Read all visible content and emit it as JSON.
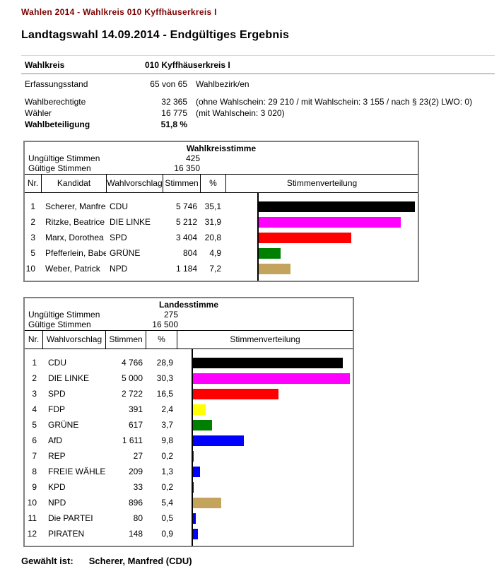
{
  "page": {
    "header": "Wahlen 2014 - Wahlkreis 010 Kyffhäuserkreis I",
    "title": "Landtagswahl 14.09.2014 - Endgültiges Ergebnis",
    "footer_label": "Gewählt ist:",
    "footer_value": "Scherer, Manfred (CDU)"
  },
  "colors": {
    "header_text": "#7B0000",
    "table_border": "#808080",
    "axis": "#000000"
  },
  "summary": {
    "wahlkreis_label": "Wahlkreis",
    "wahlkreis_value": "010  Kyffhäuserkreis I",
    "rows": [
      {
        "label": "Erfassungsstand",
        "value": "65 von 65",
        "note": "Wahlbezirk/en",
        "bold": false
      },
      {
        "label": "Wahlberechtigte",
        "value": "32 365",
        "note": "(ohne Wahlschein: 29 210 / mit Wahlschein: 3 155 / nach § 23(2) LWO: 0)",
        "bold": false
      },
      {
        "label": "Wähler",
        "value": "16 775",
        "note": "(mit Wahlschein: 3 020)",
        "bold": false
      },
      {
        "label": "Wahlbeteiligung",
        "value": "51,8 %",
        "note": "",
        "bold": true
      }
    ]
  },
  "tables": [
    {
      "title": "Wahlkreisstimme",
      "invalid_label": "Ungültige Stimmen",
      "invalid_value": "425",
      "valid_label": "Gültige Stimmen",
      "valid_value": "16 350",
      "columns": [
        "Nr.",
        "Kandidat",
        "Wahlvorschlag",
        "Stimmen",
        "%",
        "Stimmenverteilung"
      ],
      "rows": [
        {
          "nr": "1",
          "kandidat": "Scherer, Manfred",
          "partei": "CDU",
          "stimmen": "5 746",
          "pct": "35,1",
          "pct_num": 35.1,
          "color": "#000000"
        },
        {
          "nr": "2",
          "kandidat": "Ritzke, Beatrice",
          "partei": "DIE LINKE",
          "stimmen": "5 212",
          "pct": "31,9",
          "pct_num": 31.9,
          "color": "#FF00FF"
        },
        {
          "nr": "3",
          "kandidat": "Marx, Dorothea",
          "partei": "SPD",
          "stimmen": "3 404",
          "pct": "20,8",
          "pct_num": 20.8,
          "color": "#FF0000"
        },
        {
          "nr": "5",
          "kandidat": "Pfefferlein, Babett",
          "partei": "GRÜNE",
          "stimmen": "804",
          "pct": "4,9",
          "pct_num": 4.9,
          "color": "#008000"
        },
        {
          "nr": "10",
          "kandidat": "Weber, Patrick",
          "partei": "NPD",
          "stimmen": "1 184",
          "pct": "7,2",
          "pct_num": 7.2,
          "color": "#C4A45C"
        }
      ]
    },
    {
      "title": "Landesstimme",
      "invalid_label": "Ungültige Stimmen",
      "invalid_value": "275",
      "valid_label": "Gültige Stimmen",
      "valid_value": "16 500",
      "columns": [
        "Nr.",
        "Wahlvorschlag",
        "Stimmen",
        "%",
        "Stimmenverteilung"
      ],
      "rows": [
        {
          "nr": "1",
          "partei": "CDU",
          "stimmen": "4 766",
          "pct": "28,9",
          "pct_num": 28.9,
          "color": "#000000"
        },
        {
          "nr": "2",
          "partei": "DIE LINKE",
          "stimmen": "5 000",
          "pct": "30,3",
          "pct_num": 30.3,
          "color": "#FF00FF"
        },
        {
          "nr": "3",
          "partei": "SPD",
          "stimmen": "2 722",
          "pct": "16,5",
          "pct_num": 16.5,
          "color": "#FF0000"
        },
        {
          "nr": "4",
          "partei": "FDP",
          "stimmen": "391",
          "pct": "2,4",
          "pct_num": 2.4,
          "color": "#FFFF00"
        },
        {
          "nr": "5",
          "partei": "GRÜNE",
          "stimmen": "617",
          "pct": "3,7",
          "pct_num": 3.7,
          "color": "#008000"
        },
        {
          "nr": "6",
          "partei": "AfD",
          "stimmen": "1 611",
          "pct": "9,8",
          "pct_num": 9.8,
          "color": "#0000FF"
        },
        {
          "nr": "7",
          "partei": "REP",
          "stimmen": "27",
          "pct": "0,2",
          "pct_num": 0.2,
          "color": "#990000"
        },
        {
          "nr": "8",
          "partei": "FREIE WÄHLER",
          "stimmen": "209",
          "pct": "1,3",
          "pct_num": 1.3,
          "color": "#0000FF"
        },
        {
          "nr": "9",
          "partei": "KPD",
          "stimmen": "33",
          "pct": "0,2",
          "pct_num": 0.2,
          "color": "#0000FF"
        },
        {
          "nr": "10",
          "partei": "NPD",
          "stimmen": "896",
          "pct": "5,4",
          "pct_num": 5.4,
          "color": "#C4A45C"
        },
        {
          "nr": "11",
          "partei": "Die PARTEI",
          "stimmen": "80",
          "pct": "0,5",
          "pct_num": 0.5,
          "color": "#0000FF"
        },
        {
          "nr": "12",
          "partei": "PIRATEN",
          "stimmen": "148",
          "pct": "0,9",
          "pct_num": 0.9,
          "color": "#0000FF"
        }
      ]
    }
  ],
  "chart_data": [
    {
      "type": "bar",
      "orientation": "horizontal",
      "title": "Wahlkreisstimme - Stimmenverteilung",
      "categories": [
        "CDU",
        "DIE LINKE",
        "SPD",
        "GRÜNE",
        "NPD"
      ],
      "values": [
        35.1,
        31.9,
        20.8,
        4.9,
        7.2
      ],
      "votes": [
        5746,
        5212,
        3404,
        804,
        1184
      ],
      "colors": [
        "#000000",
        "#FF00FF",
        "#FF0000",
        "#008000",
        "#C4A45C"
      ],
      "xlabel": "%",
      "ylabel": "",
      "xlim": [
        0,
        35.1
      ],
      "grid": false,
      "legend": false
    },
    {
      "type": "bar",
      "orientation": "horizontal",
      "title": "Landesstimme - Stimmenverteilung",
      "categories": [
        "CDU",
        "DIE LINKE",
        "SPD",
        "FDP",
        "GRÜNE",
        "AfD",
        "REP",
        "FREIE WÄHLER",
        "KPD",
        "NPD",
        "Die PARTEI",
        "PIRATEN"
      ],
      "values": [
        28.9,
        30.3,
        16.5,
        2.4,
        3.7,
        9.8,
        0.2,
        1.3,
        0.2,
        5.4,
        0.5,
        0.9
      ],
      "votes": [
        4766,
        5000,
        2722,
        391,
        617,
        1611,
        27,
        209,
        33,
        896,
        80,
        148
      ],
      "colors": [
        "#000000",
        "#FF00FF",
        "#FF0000",
        "#FFFF00",
        "#008000",
        "#0000FF",
        "#990000",
        "#0000FF",
        "#0000FF",
        "#C4A45C",
        "#0000FF",
        "#0000FF"
      ],
      "xlabel": "%",
      "ylabel": "",
      "xlim": [
        0,
        30.3
      ],
      "grid": false,
      "legend": false
    }
  ]
}
